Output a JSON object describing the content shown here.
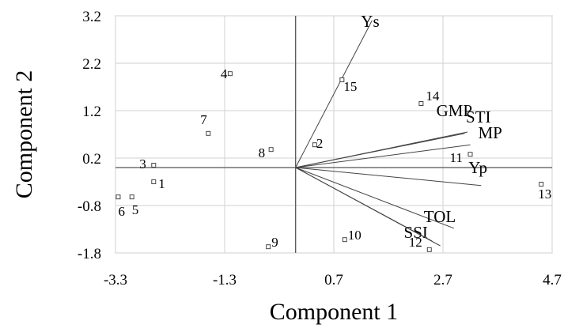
{
  "chart_data": {
    "type": "scatter",
    "subtype": "biplot",
    "xlabel": "Component 1",
    "ylabel": "Component 2",
    "xlim": [
      -3.3,
      4.7
    ],
    "ylim": [
      -1.8,
      3.2
    ],
    "x_ticks": [
      "-3.3",
      "-1.3",
      "0.7",
      "2.7",
      "4.7"
    ],
    "y_ticks": [
      "3.2",
      "2.2",
      "1.2",
      "0.2",
      "-0.8",
      "-1.8"
    ],
    "x_tick_values": [
      -3.3,
      -1.3,
      0.7,
      2.7,
      4.7
    ],
    "y_tick_values": [
      3.2,
      2.2,
      1.2,
      0.2,
      -0.8,
      -1.8
    ],
    "grid": true,
    "origin": [
      0,
      0
    ],
    "points": [
      {
        "label": "1",
        "x": -2.6,
        "y": -0.3
      },
      {
        "label": "2",
        "x": 0.35,
        "y": 0.48
      },
      {
        "label": "3",
        "x": -2.6,
        "y": 0.05
      },
      {
        "label": "4",
        "x": -1.2,
        "y": 1.98
      },
      {
        "label": "5",
        "x": -3.0,
        "y": -0.62
      },
      {
        "label": "6",
        "x": -3.25,
        "y": -0.62
      },
      {
        "label": "7",
        "x": -1.6,
        "y": 0.72
      },
      {
        "label": "8",
        "x": -0.45,
        "y": 0.38
      },
      {
        "label": "9",
        "x": -0.5,
        "y": -1.67
      },
      {
        "label": "10",
        "x": 0.9,
        "y": -1.52
      },
      {
        "label": "11",
        "x": 3.2,
        "y": 0.28
      },
      {
        "label": "12",
        "x": 2.45,
        "y": -1.73
      },
      {
        "label": "13",
        "x": 4.5,
        "y": -0.35
      },
      {
        "label": "14",
        "x": 2.3,
        "y": 1.35
      },
      {
        "label": "15",
        "x": 0.85,
        "y": 1.85
      }
    ],
    "vectors": [
      {
        "label": "Ys",
        "x": 1.4,
        "y": 3.1
      },
      {
        "label": "GMP",
        "x": 3.1,
        "y": 0.72
      },
      {
        "label": "STI",
        "x": 3.15,
        "y": 0.75
      },
      {
        "label": "MP",
        "x": 3.2,
        "y": 0.48
      },
      {
        "label": "Yp",
        "x": 3.4,
        "y": -0.38
      },
      {
        "label": "TOL",
        "x": 2.9,
        "y": -1.28
      },
      {
        "label": "SSI",
        "x": 2.65,
        "y": -1.65
      },
      {
        "label": "",
        "x": 2.5,
        "y": -1.55
      }
    ]
  }
}
